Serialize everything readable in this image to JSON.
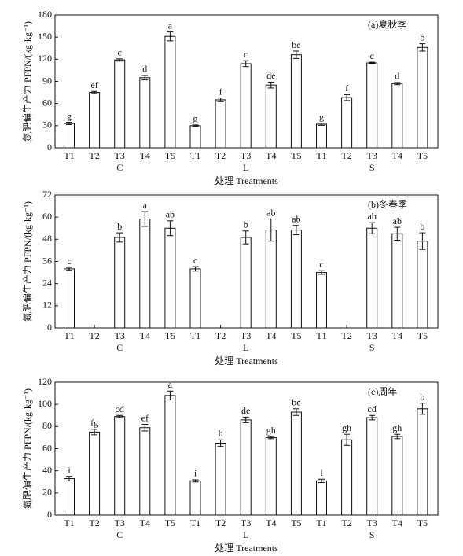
{
  "chart_data": [
    {
      "type": "bar",
      "annotation": "(a)夏秋季",
      "ylabel": "氮肥偏生产力 PFPN/(kg·kg⁻¹)",
      "xlabel": "处理 Treatments",
      "categories": [
        "T1",
        "T2",
        "T3",
        "T4",
        "T5",
        "T1",
        "T2",
        "T3",
        "T4",
        "T5",
        "T1",
        "T2",
        "T3",
        "T4",
        "T5"
      ],
      "groups": [
        "C",
        "L",
        "S"
      ],
      "values": [
        33,
        75,
        119,
        95,
        151,
        30,
        65,
        114,
        85,
        126,
        32,
        68,
        115,
        87,
        136
      ],
      "errors": [
        1.5,
        1.5,
        1.5,
        3,
        6,
        1,
        2.5,
        4,
        4,
        5,
        1.5,
        4,
        1,
        1.5,
        5
      ],
      "letters": [
        "g",
        "ef",
        "c",
        "d",
        "a",
        "g",
        "f",
        "c",
        "de",
        "bc",
        "g",
        "f",
        "c",
        "d",
        "b"
      ],
      "ylim": [
        0,
        180
      ],
      "yticks": [
        0,
        30,
        60,
        90,
        120,
        150,
        180
      ],
      "color": "#ffffff"
    },
    {
      "type": "bar",
      "annotation": "(b)冬春季",
      "ylabel": "氮肥偏生产力 PFPN/(kg·kg⁻¹)",
      "xlabel": "处理 Treatments",
      "categories": [
        "T1",
        "T2",
        "T3",
        "T4",
        "T5",
        "T1",
        "T2",
        "T3",
        "T4",
        "T5",
        "T1",
        "T2",
        "T3",
        "T4",
        "T5"
      ],
      "groups": [
        "C",
        "L",
        "S"
      ],
      "values": [
        32,
        null,
        49,
        59,
        54,
        32,
        null,
        49,
        53,
        53,
        30,
        null,
        54,
        51,
        47
      ],
      "errors": [
        0.8,
        null,
        2.5,
        4,
        4,
        1.2,
        null,
        3.5,
        6,
        2.5,
        1,
        null,
        3,
        3.5,
        4.5
      ],
      "letters": [
        "c",
        null,
        "b",
        "a",
        "ab",
        "c",
        null,
        "b",
        "ab",
        "ab",
        "c",
        null,
        "ab",
        "ab",
        "b"
      ],
      "ylim": [
        0,
        72
      ],
      "yticks": [
        0,
        12,
        24,
        36,
        48,
        60,
        72
      ],
      "color": "#ffffff"
    },
    {
      "type": "bar",
      "annotation": "(c)周年",
      "ylabel": "氮肥偏生产力 PFPN/(kg·kg⁻¹)",
      "xlabel": "处理 Treatments",
      "categories": [
        "T1",
        "T2",
        "T3",
        "T4",
        "T5",
        "T1",
        "T2",
        "T3",
        "T4",
        "T5",
        "T1",
        "T2",
        "T3",
        "T4",
        "T5"
      ],
      "groups": [
        "C",
        "L",
        "S"
      ],
      "values": [
        33,
        75,
        89,
        79,
        108,
        31,
        65,
        86,
        70,
        93,
        31,
        68,
        88,
        71,
        96
      ],
      "errors": [
        2,
        2.5,
        1,
        3,
        4,
        1,
        3,
        2.5,
        1,
        3,
        1.5,
        5,
        2,
        2,
        5
      ],
      "letters": [
        "i",
        "fg",
        "cd",
        "ef",
        "a",
        "i",
        "h",
        "de",
        "gh",
        "bc",
        "i",
        "gh",
        "cd",
        "gh",
        "b"
      ],
      "ylim": [
        0,
        120
      ],
      "yticks": [
        0,
        20,
        40,
        60,
        80,
        100,
        120
      ],
      "color": "#ffffff"
    }
  ]
}
